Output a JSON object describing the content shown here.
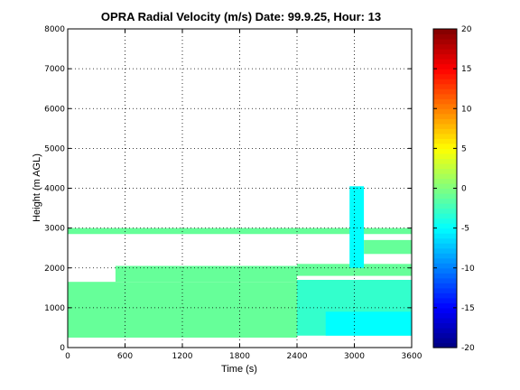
{
  "chart_data": {
    "type": "heatmap",
    "title": "OPRA Radial Velocity (m/s)  Date: 99.9.25, Hour: 13",
    "xlabel": "Time (s)",
    "ylabel": "Height (m AGL)",
    "xlim": [
      0,
      3600
    ],
    "ylim": [
      0,
      8000
    ],
    "xticks": [
      0,
      600,
      1200,
      1800,
      2400,
      3000,
      3600
    ],
    "yticks": [
      0,
      1000,
      2000,
      3000,
      4000,
      5000,
      6000,
      7000,
      8000
    ],
    "grid": true,
    "colorbar": {
      "colormap": "jet",
      "range": [
        -20,
        20
      ],
      "ticks": [
        20,
        15,
        10,
        5,
        0,
        -5,
        -10,
        -15,
        -20
      ]
    },
    "regions": [
      {
        "x": [
          0,
          2400
        ],
        "y": [
          250,
          1650
        ],
        "velocity": -1
      },
      {
        "x": [
          0,
          3600
        ],
        "y": [
          2850,
          3000
        ],
        "velocity": -1
      },
      {
        "x": [
          500,
          2400
        ],
        "y": [
          1650,
          2050
        ],
        "velocity": -1
      },
      {
        "x": [
          2400,
          3600
        ],
        "y": [
          1800,
          2100
        ],
        "velocity": -1
      },
      {
        "x": [
          2400,
          3600
        ],
        "y": [
          300,
          1700
        ],
        "velocity": -3
      },
      {
        "x": [
          2700,
          3600
        ],
        "y": [
          300,
          900
        ],
        "velocity": -5
      },
      {
        "x": [
          2950,
          3100
        ],
        "y": [
          2000,
          4050
        ],
        "velocity": -5
      },
      {
        "x": [
          3100,
          3600
        ],
        "y": [
          2350,
          2700
        ],
        "velocity": -1
      }
    ]
  }
}
